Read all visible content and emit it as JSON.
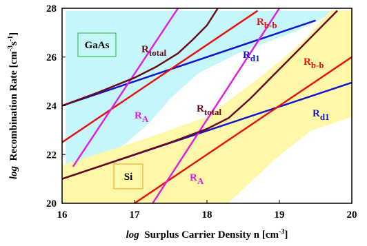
{
  "chart_data": {
    "type": "line",
    "x_label": {
      "italic": "log",
      "text": "Surplus Carrier Density n  [cm",
      "sup": "-3",
      "end": "]"
    },
    "y_label": {
      "italic": "log",
      "text": "Recombination Rate  [cm",
      "sup": "-3",
      "mid": "s",
      "sup2": "-1",
      "end": "]"
    },
    "xlim": [
      16,
      20
    ],
    "ylim": [
      20,
      28
    ],
    "xticks": [
      16,
      17,
      18,
      19,
      20
    ],
    "yticks": [
      20,
      22,
      24,
      26,
      28
    ],
    "regions": [
      {
        "name": "GaAs",
        "color": "#c4f6fa",
        "border": "#20b040",
        "x": [
          16.05,
          19.81,
          19.24,
          18.48,
          17.9,
          17.52,
          17.19,
          16.86,
          16.38,
          16.05
        ],
        "y": [
          27.9,
          27.9,
          27.07,
          26.22,
          25.37,
          24.38,
          23.25,
          22.41,
          21.56,
          21.14
        ]
      },
      {
        "name": "Si",
        "color": "#fff8a8",
        "border": "#f0a020",
        "x": [
          16,
          17.05,
          18,
          18.76,
          19.33,
          19.71,
          20,
          20,
          19.43,
          18.95,
          18.29,
          16
        ],
        "y": [
          21.56,
          22.55,
          23.54,
          25.23,
          26.64,
          27.92,
          27.92,
          23.54,
          22.97,
          21.84,
          20,
          20
        ]
      }
    ],
    "series": [
      {
        "label": {
          "base": "R",
          "sub": "d1"
        },
        "color": "#1414d0",
        "x": [
          16,
          19.5
        ],
        "values": [
          24,
          27.5
        ]
      },
      {
        "label": {
          "base": "R",
          "sub": "b-b"
        },
        "color": "#e81010",
        "x": [
          16,
          18.7
        ],
        "values": [
          22.5,
          27.9
        ]
      },
      {
        "label": {
          "base": "R",
          "sub": "A"
        },
        "color": "#e020e0",
        "x": [
          16.15,
          17.6
        ],
        "values": [
          21.5,
          28
        ]
      },
      {
        "label": {
          "base": "R",
          "sub": "total"
        },
        "color": "#6a0818",
        "x": [
          16,
          16.5,
          17,
          17.3,
          17.6,
          17.8,
          18.0,
          18.15
        ],
        "values": [
          24,
          24.55,
          25.15,
          25.6,
          26.15,
          26.7,
          27.3,
          28
        ]
      },
      {
        "label": {
          "base": "R",
          "sub": "d1"
        },
        "color": "#1414d0",
        "x": [
          16,
          20
        ],
        "values": [
          21,
          24.95
        ]
      },
      {
        "label": {
          "base": "R",
          "sub": "b-b"
        },
        "color": "#e81010",
        "x": [
          17,
          20
        ],
        "values": [
          20,
          26
        ]
      },
      {
        "label": {
          "base": "R",
          "sub": "A"
        },
        "color": "#e020e0",
        "x": [
          17.25,
          19.0
        ],
        "values": [
          20,
          28
        ]
      },
      {
        "label": {
          "base": "R",
          "sub": "total"
        },
        "color": "#6a0818",
        "x": [
          16,
          17,
          17.5,
          18,
          18.3,
          18.6,
          18.9,
          19.2,
          19.5,
          19.8
        ],
        "values": [
          21,
          22,
          22.5,
          23.05,
          23.5,
          24.3,
          25.2,
          26.1,
          27.0,
          27.9
        ]
      }
    ]
  }
}
